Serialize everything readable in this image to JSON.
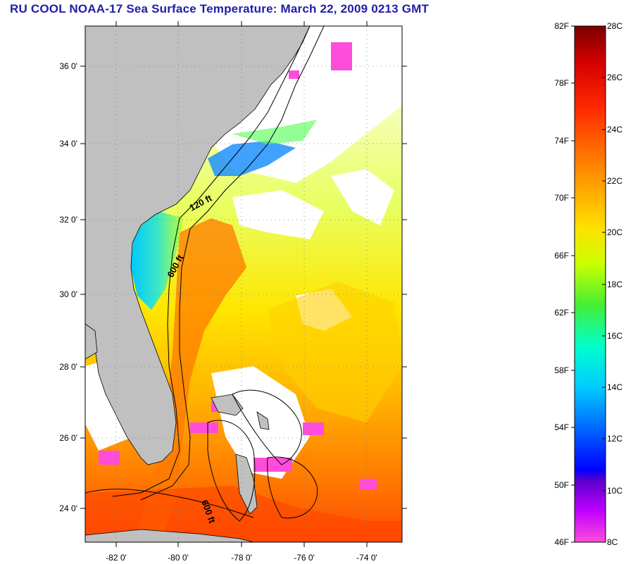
{
  "title": "RU COOL  NOAA-17  Sea Surface Temperature:  March 22, 2009 0213 GMT",
  "map": {
    "lat_labels": [
      "36 0'",
      "34 0'",
      "32 0'",
      "30 0'",
      "28 0'",
      "26 0'",
      "24 0'"
    ],
    "lon_labels": [
      "-82 0'",
      "-80 0'",
      "-78 0'",
      "-76 0'",
      "-74 0'"
    ],
    "isobath_labels": [
      "120 ft",
      "600 ft",
      "600 ft"
    ],
    "land_color": "#c0c0c0",
    "cloud_color": "#ffffff"
  },
  "colorbar": {
    "f_labels": [
      "82F",
      "78F",
      "74F",
      "70F",
      "66F",
      "62F",
      "58F",
      "54F",
      "50F",
      "46F"
    ],
    "c_labels": [
      "28C",
      "26C",
      "24C",
      "22C",
      "20C",
      "18C",
      "16C",
      "14C",
      "12C",
      "10C",
      "8C"
    ]
  }
}
